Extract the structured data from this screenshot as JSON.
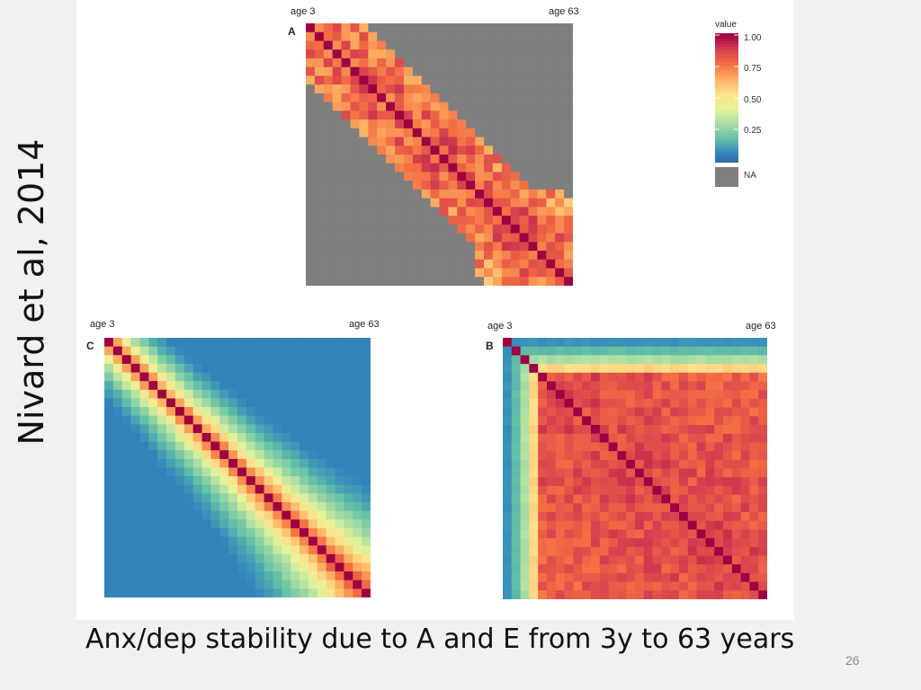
{
  "slide": {
    "vertical_citation": "Nivard et al, 2014",
    "caption": "Anx/dep stability due to A and E from 3y to 63 years",
    "page_number": "26"
  },
  "colors": {
    "na": "#7f7f7f",
    "scale": [
      "#3b4f9e",
      "#3288bd",
      "#66c2a5",
      "#abdda4",
      "#e6f598",
      "#fee08b",
      "#fdae61",
      "#f46d43",
      "#d53e4f",
      "#9e0142"
    ]
  },
  "legend": {
    "title": "value",
    "ticks": [
      "1.00",
      "0.75",
      "0.50",
      "0.25"
    ],
    "tick_values": [
      1.0,
      0.75,
      0.5,
      0.25
    ],
    "na_label": "NA"
  },
  "chart_data": [
    {
      "type": "heatmap",
      "panel": "A",
      "label_start": "age 3",
      "label_end": "age 63",
      "n": 30,
      "model": "band",
      "band_half_width": 6,
      "off_band_value": null,
      "value_range": [
        0.45,
        0.95
      ],
      "legend": "top-right"
    },
    {
      "type": "heatmap",
      "panel": "C",
      "label_start": "age 3",
      "label_end": "age 63",
      "n": 30,
      "model": "decay",
      "value_range": [
        0.1,
        1.0
      ]
    },
    {
      "type": "heatmap",
      "panel": "B",
      "label_start": "age 3",
      "label_end": "age 63",
      "n": 30,
      "model": "block",
      "value_range": [
        0.1,
        1.0
      ]
    }
  ]
}
